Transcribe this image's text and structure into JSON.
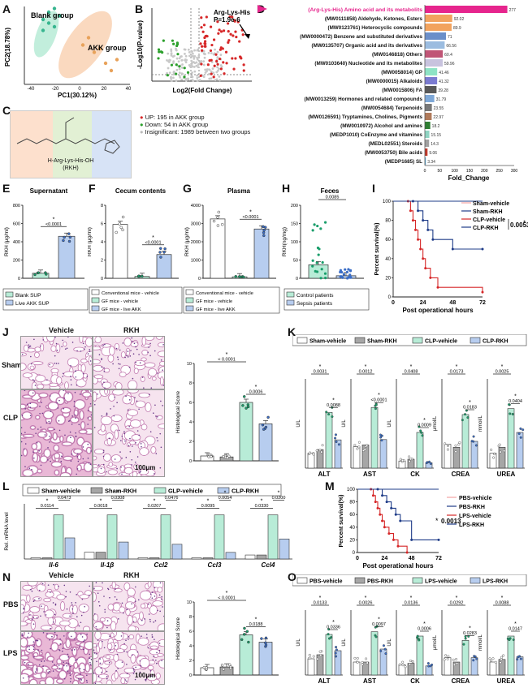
{
  "panels": {
    "A": {
      "label": "A",
      "xlabel": "PC1(30.12%)",
      "ylabel": "PC2(18.78%)",
      "group1": "Blank group",
      "group2": "AKK group",
      "chart_data": {
        "type": "scatter",
        "series": [
          {
            "name": "Blank group",
            "color": "#37b58f",
            "points": [
              [
                -6,
                8
              ],
              [
                -5,
                10
              ],
              [
                -4,
                11
              ],
              [
                -5,
                7
              ],
              [
                -3,
                9
              ],
              [
                -4,
                6
              ],
              [
                -6,
                5
              ]
            ]
          },
          {
            "name": "AKK group",
            "color": "#e8a25a",
            "points": [
              [
                1,
                1
              ],
              [
                3,
                -1
              ],
              [
                5,
                -4
              ],
              [
                2,
                3
              ],
              [
                4,
                0
              ],
              [
                7,
                -3
              ],
              [
                6,
                -6
              ]
            ]
          }
        ]
      },
      "x_ticks": [
        "-40",
        "-20",
        "0",
        "20",
        "40"
      ]
    },
    "B": {
      "label": "B",
      "xlabel": "Log2(Fold Change)",
      "ylabel": "-Log10(P-value)",
      "annot_title": "Arg-Lys-His",
      "annot_p": "P=1.9e-6",
      "legend": [
        "UP: 195 in AKK group",
        "Down: 54 in AKK group",
        "Insignificant:  1989 between two groups"
      ],
      "legend_colors": [
        "#d62728",
        "#2ca02c",
        "#bbbbbb"
      ]
    },
    "C": {
      "label": "C",
      "structure_label": "H-Arg-Lys-His-OH",
      "structure_sub": "(RKH)"
    },
    "D": {
      "label": "D",
      "xlabel": "Fold_Change",
      "x_ticks": [
        "0",
        "50",
        "100",
        "150",
        "200",
        "250",
        "300"
      ],
      "chart_data": {
        "type": "bar",
        "xlim": [
          0,
          300
        ],
        "categories": [
          "(Arg-Lys-His) Amino acid and its metabolits",
          "(MW0111858) Aldehyde, Ketones, Esters",
          "(MW0123761) Heterocyclic compounds",
          "(MW0000472) Benzene and substituted derivatives",
          "(MW0135707) Organic acid and its derivatives",
          "(MW0146818) Others",
          "(MW0103640) Nucleotide and its metabolites",
          "(MW0058014) GP",
          "(MW0000015) Alkaloids",
          "(MW0015806) FA",
          "(MW0013259) Hormones and related compounds",
          "(MW0054684) Terpenoids",
          "(MW0126591) Tryptamines, Cholines, Pigments",
          "(MW0010972) Alcohol and amines",
          "(MEDP1010) CoEnzyme and vitamines",
          "(MEDL02551) Steroids",
          "(MW0053750) Bile acids",
          "(MEDP1685) SL"
        ],
        "values": [
          277,
          92.02,
          89.9,
          71,
          66.56,
          60.4,
          59.96,
          41.46,
          41.32,
          39.28,
          31.79,
          23.55,
          22.97,
          18.2,
          15.15,
          14.3,
          9.06,
          3.34
        ],
        "value_labels": [
          "277",
          "92.02",
          "89.9",
          "71",
          "66.56",
          "60.4",
          "59.96",
          "41.46",
          "41.32",
          "39.28",
          "31.79",
          "23.55",
          "22.97",
          "18.2",
          "15.15",
          "14.3",
          "9.06",
          "3.34"
        ],
        "colors": [
          "#e6258d",
          "#f2a35e",
          "#f2a35e",
          "#6b8fc9",
          "#9bbce0",
          "#c05576",
          "#c8c3de",
          "#8ee3c5",
          "#7b7bd1",
          "#595959",
          "#7ea8d8",
          "#787878",
          "#b07a5a",
          "#2e7d32",
          "#8fd3c2",
          "#a0a0a0",
          "#c0392b",
          "#5aa9d6"
        ]
      }
    },
    "E": {
      "label": "E",
      "title": "Supernatant",
      "ylabel": "RKH (μg/ml)",
      "y_ticks": [
        "0",
        "200",
        "400",
        "600",
        "800"
      ],
      "pval": "<0.0001",
      "star": "*",
      "legend": [
        "Blank SUP",
        "Live AKK SUP"
      ],
      "chart_data": {
        "type": "bar",
        "categories": [
          "Blank SUP",
          "Live AKK SUP"
        ],
        "values": [
          55,
          460
        ],
        "ylim": [
          0,
          800
        ]
      }
    },
    "F": {
      "label": "F",
      "title": "Cecum contents",
      "ylabel": "RKH (μg/ml)",
      "y_ticks": [
        "0",
        "2",
        "4",
        "6",
        "8"
      ],
      "pval": "<0.0001",
      "star": "*",
      "legend": [
        "Conventional mice - vehicle",
        "GF mice  - vehicle",
        "GF mice  - live AKK"
      ],
      "chart_data": {
        "type": "bar",
        "categories": [
          "Conventional mice - vehicle",
          "GF mice - vehicle",
          "GF mice - live AKK"
        ],
        "values": [
          5.9,
          0.2,
          2.6
        ],
        "ylim": [
          0,
          8
        ]
      }
    },
    "G": {
      "label": "G",
      "title": "Plasma",
      "ylabel": "RKH (μg/ml)",
      "y_ticks": [
        "0",
        "1000",
        "2000",
        "3000",
        "4000"
      ],
      "pval": "<0.0001",
      "star": "*",
      "legend": [
        "Conventional mice - vehicle",
        "GF mice  - vehicle",
        "GF mice  - live AKK"
      ],
      "chart_data": {
        "type": "bar",
        "categories": [
          "Conventional mice - vehicle",
          "GF mice - vehicle",
          "GF mice - live AKK"
        ],
        "values": [
          3250,
          80,
          2700
        ],
        "ylim": [
          0,
          4000
        ]
      }
    },
    "H": {
      "label": "H",
      "title": "Feces",
      "ylabel": "RKH(ng/mg)",
      "y_ticks": [
        "0",
        "50",
        "100",
        "150",
        "200"
      ],
      "pval": "0.0085",
      "star": "*",
      "legend": [
        "Control patients",
        "Sepsis patients"
      ],
      "chart_data": {
        "type": "bar",
        "categories": [
          "Control patients",
          "Sepsis patients"
        ],
        "values": [
          37,
          7
        ],
        "ylim": [
          0,
          200
        ]
      }
    },
    "I": {
      "label": "I",
      "xlabel": "Post operational hours",
      "ylabel": "Percent survival(%)",
      "x_ticks": [
        "0",
        "24",
        "48",
        "72"
      ],
      "y_ticks": [
        "0",
        "20",
        "40",
        "60",
        "80",
        "100"
      ],
      "legend": [
        "Sham-vehicle",
        "Sham-RKH",
        "CLP-vehicle",
        "CLP-RKH"
      ],
      "pval": "0.0053",
      "star": "*",
      "chart_data": {
        "type": "line",
        "series": [
          {
            "name": "Sham-vehicle",
            "color": "#f4a3a3",
            "x": [
              0,
              72
            ],
            "y": [
              100,
              100
            ]
          },
          {
            "name": "Sham-RKH",
            "color": "#1f3c88",
            "x": [
              0,
              72
            ],
            "y": [
              100,
              100
            ]
          },
          {
            "name": "CLP-vehicle",
            "color": "#d62728",
            "x": [
              0,
              12,
              14,
              16,
              18,
              20,
              22,
              24,
              26,
              30,
              36,
              72
            ],
            "y": [
              100,
              100,
              90,
              80,
              70,
              60,
              50,
              40,
              30,
              20,
              10,
              5
            ]
          },
          {
            "name": "CLP-RKH",
            "color": "#1f3c88",
            "x": [
              0,
              16,
              20,
              24,
              28,
              32,
              48,
              72
            ],
            "y": [
              100,
              100,
              90,
              80,
              70,
              60,
              50,
              50
            ]
          }
        ]
      }
    },
    "J": {
      "label": "J",
      "col1": "Vehicle",
      "col2": "RKH",
      "row1": "Sham",
      "row2": "CLP",
      "scale": "100μm",
      "ylabel": "Histological Score",
      "y_ticks": [
        "0",
        "2",
        "4",
        "6",
        "8",
        "10"
      ],
      "p1": "< 0.0001",
      "p2": "0.0006",
      "star": "*",
      "chart_data": {
        "type": "bar",
        "categories": [
          "Sham-vehicle",
          "Sham-RKH",
          "CLP-vehicle",
          "CLP-RKH"
        ],
        "values": [
          0.5,
          0.4,
          6.0,
          3.8
        ],
        "ylim": [
          0,
          10
        ]
      }
    },
    "K": {
      "label": "K",
      "legend": [
        "Sham-vehicle",
        "Sham-RKH",
        "CLP-vehicle",
        "CLP-RKH"
      ],
      "subs": [
        {
          "name": "ALT",
          "unit": "U/L",
          "p1": "0.0031",
          "p2": "0.0088",
          "values": [
            20,
            25,
            75,
            38
          ],
          "ymax": 120
        },
        {
          "name": "AST",
          "unit": "U/L",
          "p1": "0.0012",
          "p2": "<0.0001",
          "values": [
            60,
            65,
            170,
            80
          ],
          "ymax": 250
        },
        {
          "name": "CK",
          "unit": "U/L",
          "p1": "0.0408",
          "p2": "0.0009",
          "values": [
            200,
            250,
            1000,
            150
          ],
          "ymax": 2500
        },
        {
          "name": "CREA",
          "unit": "μmol/L",
          "p1": "0.0173",
          "p2": "0.0183",
          "values": [
            8,
            7,
            18,
            9
          ],
          "ymax": 30
        },
        {
          "name": "UREA",
          "unit": "mmol/L",
          "p1": "0.0025",
          "p2": "0.0404",
          "values": [
            5,
            7,
            20,
            12
          ],
          "ymax": 30
        }
      ]
    },
    "L": {
      "label": "L",
      "legend": [
        "Sham-vehicle",
        "Sham-RKH",
        "CLP-vehicle",
        "CLP-RKH"
      ],
      "ylabel": "Rel. mRNA level",
      "genes": [
        {
          "name": "Il-6",
          "p1": "0.0114",
          "p2": "0.0473",
          "values": [
            2,
            2,
            230,
            110
          ]
        },
        {
          "name": "Il-1β",
          "p1": "0.0018",
          "p2": "0.0308",
          "values": [
            2,
            2,
            13,
            5
          ]
        },
        {
          "name": "Ccl2",
          "p1": "0.0207",
          "p2": "0.0476",
          "values": [
            2,
            2,
            180,
            60
          ]
        },
        {
          "name": "Ccl3",
          "p1": "0.0095",
          "p2": "0.0054",
          "values": [
            2,
            2,
            200,
            30
          ]
        },
        {
          "name": "Ccl4",
          "p1": "0.0330",
          "p2": "0.0200",
          "values": [
            2,
            2,
            22,
            10
          ]
        }
      ]
    },
    "M": {
      "label": "M",
      "xlabel": "Post operational hours",
      "ylabel": "Percent survival(%)",
      "x_ticks": [
        "0",
        "24",
        "48",
        "72"
      ],
      "y_ticks": [
        "0",
        "20",
        "40",
        "60",
        "80",
        "100"
      ],
      "legend": [
        "PBS-vehicle",
        "PBS-RKH",
        "LPS-vehicle",
        "LPS-RKH"
      ],
      "pval": "0.0013",
      "star": "*",
      "chart_data": {
        "type": "line",
        "series": [
          {
            "name": "PBS-vehicle",
            "color": "#f4a3a3",
            "x": [
              0,
              72
            ],
            "y": [
              100,
              100
            ]
          },
          {
            "name": "PBS-RKH",
            "color": "#1f3c88",
            "x": [
              0,
              72
            ],
            "y": [
              100,
              100
            ]
          },
          {
            "name": "LPS-vehicle",
            "color": "#d62728",
            "x": [
              0,
              12,
              14,
              16,
              18,
              20,
              22,
              24,
              28,
              32,
              36,
              44
            ],
            "y": [
              100,
              100,
              90,
              80,
              70,
              60,
              50,
              40,
              30,
              20,
              10,
              0
            ]
          },
          {
            "name": "LPS-RKH",
            "color": "#1f3c88",
            "x": [
              0,
              18,
              22,
              26,
              30,
              34,
              38,
              48,
              72
            ],
            "y": [
              100,
              100,
              90,
              80,
              70,
              60,
              50,
              20,
              20
            ]
          }
        ]
      }
    },
    "N": {
      "label": "N",
      "col1": "Vehicle",
      "col2": "RKH",
      "row1": "PBS",
      "row2": "LPS",
      "scale": "100μm",
      "ylabel": "Histological Score",
      "y_ticks": [
        "0",
        "2",
        "4",
        "6",
        "8",
        "10"
      ],
      "p1": "< 0.0001",
      "p2": "0.0188",
      "star": "*",
      "chart_data": {
        "type": "bar",
        "categories": [
          "PBS-vehicle",
          "PBS-RKH",
          "LPS-vehicle",
          "LPS-RKH"
        ],
        "values": [
          1.0,
          1.1,
          5.5,
          4.5
        ],
        "ylim": [
          0,
          10
        ]
      }
    },
    "O": {
      "label": "O",
      "legend": [
        "PBS-vehicle",
        "PBS-RKH",
        "LPS-vehicle",
        "LPS-RKH"
      ],
      "subs": [
        {
          "name": "ALT",
          "unit": "U/L",
          "p1": "0.0133",
          "p2": "0.0336",
          "values": [
            20,
            25,
            50,
            30
          ],
          "ymax": 80
        },
        {
          "name": "AST",
          "unit": "U/L",
          "p1": "0.0026",
          "p2": "0.0097",
          "values": [
            30,
            30,
            100,
            60
          ],
          "ymax": 150
        },
        {
          "name": "CK",
          "unit": "U/L",
          "p1": "0.0136",
          "p2": "0.0006",
          "values": [
            80,
            90,
            300,
            70
          ],
          "ymax": 500
        },
        {
          "name": "CREA",
          "unit": "μmol/L",
          "p1": "0.0292",
          "p2": "0.0283",
          "values": [
            4,
            3,
            8,
            4
          ],
          "ymax": 15
        },
        {
          "name": "UREA",
          "unit": "mmol/L",
          "p1": "0.0088",
          "p2": "0.0147",
          "values": [
            5,
            6,
            15,
            7
          ],
          "ymax": 25
        }
      ]
    }
  },
  "colors": {
    "white": "#ffffff",
    "grey": "#a6a6a6",
    "mint": "#b8ecd7",
    "blue": "#b7cdef",
    "green_dot": "#1a9e6b",
    "blue_dot": "#3b6ec7",
    "pink": "#e6258d"
  }
}
